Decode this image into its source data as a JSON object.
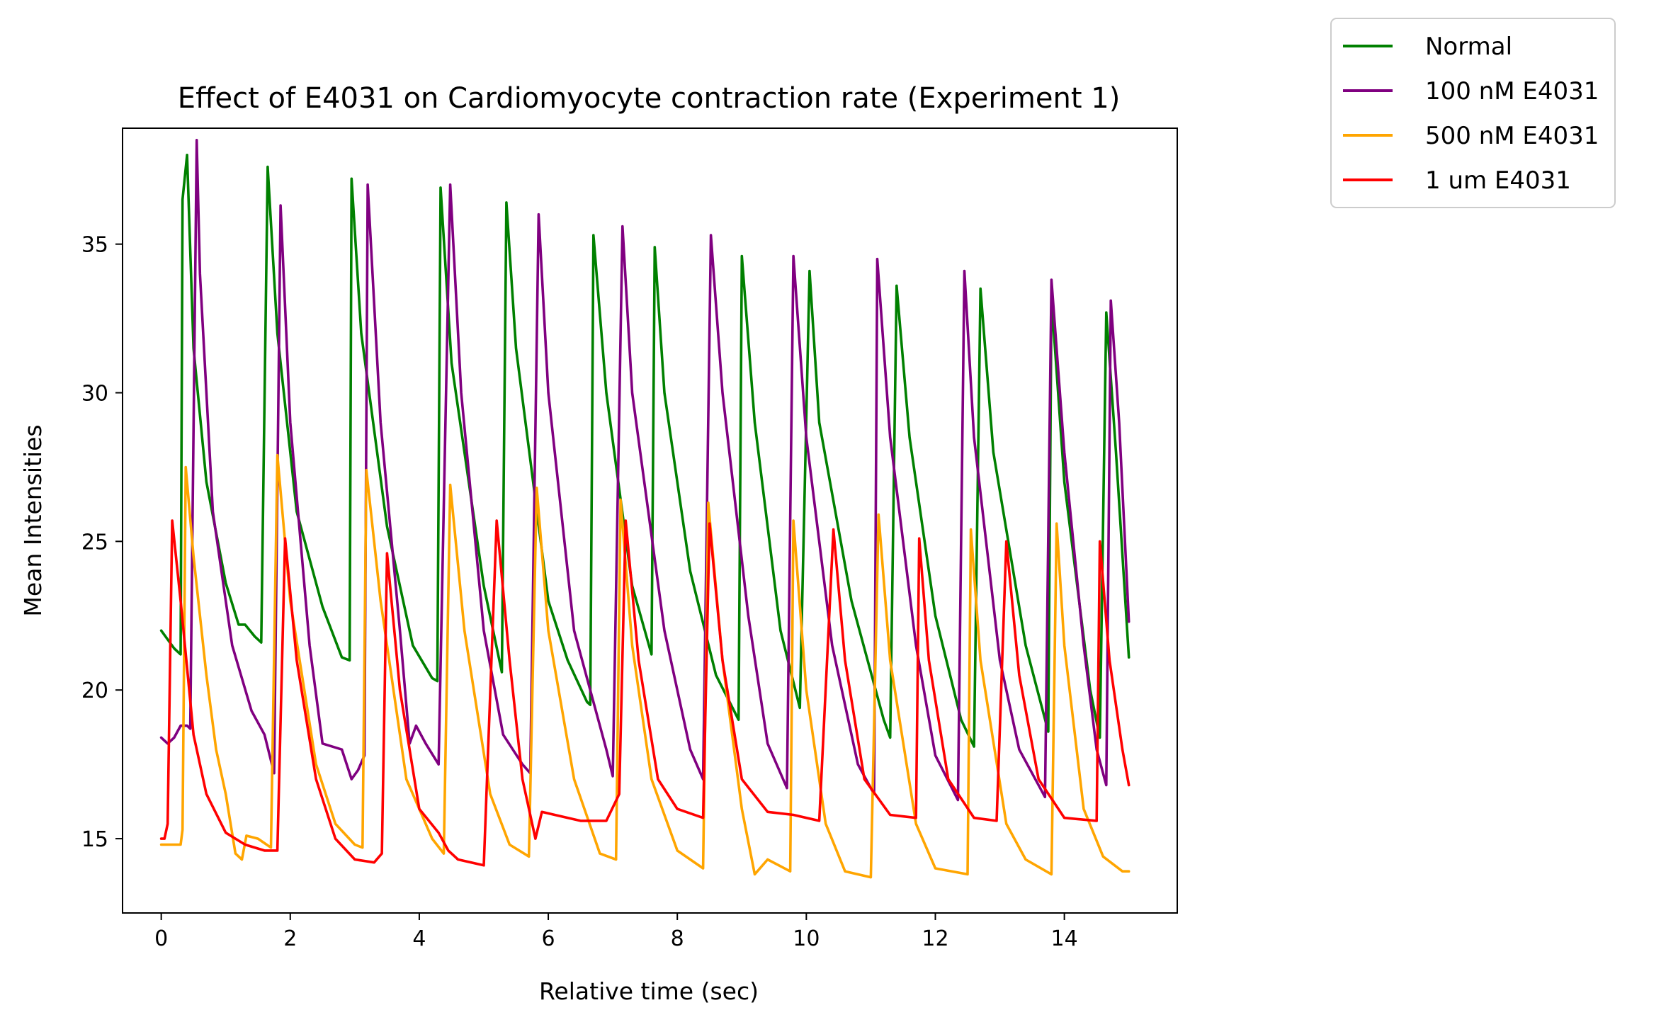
{
  "chart_data": {
    "type": "line",
    "title": "Effect of E4031 on Cardiomyocyte contraction rate (Experiment 1)",
    "xlabel": "Relative time (sec)",
    "ylabel": "Mean Intensities",
    "xlim": [
      -0.6,
      15.75
    ],
    "ylim": [
      12.5,
      38.9
    ],
    "x_ticks": [
      0,
      2,
      4,
      6,
      8,
      10,
      12,
      14
    ],
    "y_ticks": [
      15,
      20,
      25,
      30,
      35
    ],
    "x_tick_labels": [
      "0",
      "2",
      "4",
      "6",
      "8",
      "10",
      "12",
      "14"
    ],
    "y_tick_labels": [
      "15",
      "20",
      "25",
      "30",
      "35"
    ],
    "grid": false,
    "legend_position": "outside upper right",
    "legend": [
      "Normal",
      "100 nM E4031",
      "500 nM E4031",
      "1 um E4031"
    ],
    "series": [
      {
        "name": "Normal",
        "color": "#008000",
        "points": [
          [
            0,
            22
          ],
          [
            0.2,
            21.4
          ],
          [
            0.3,
            21.2
          ],
          [
            0.33,
            36.5
          ],
          [
            0.4,
            38
          ],
          [
            0.5,
            31.5
          ],
          [
            0.7,
            27
          ],
          [
            1.0,
            23.6
          ],
          [
            1.2,
            22.2
          ],
          [
            1.3,
            22.2
          ],
          [
            1.45,
            21.8
          ],
          [
            1.55,
            21.6
          ],
          [
            1.65,
            37.6
          ],
          [
            1.8,
            32
          ],
          [
            2.1,
            26
          ],
          [
            2.5,
            22.8
          ],
          [
            2.8,
            21.1
          ],
          [
            2.92,
            21
          ],
          [
            2.95,
            37.2
          ],
          [
            3.1,
            32
          ],
          [
            3.5,
            25.5
          ],
          [
            3.9,
            21.5
          ],
          [
            4.2,
            20.4
          ],
          [
            4.28,
            20.3
          ],
          [
            4.33,
            36.9
          ],
          [
            4.5,
            31
          ],
          [
            5.0,
            23.5
          ],
          [
            5.28,
            20.6
          ],
          [
            5.35,
            36.4
          ],
          [
            5.5,
            31.5
          ],
          [
            6.0,
            23
          ],
          [
            6.3,
            21
          ],
          [
            6.6,
            19.6
          ],
          [
            6.65,
            19.5
          ],
          [
            6.7,
            35.3
          ],
          [
            6.9,
            30
          ],
          [
            7.3,
            23.5
          ],
          [
            7.6,
            21.2
          ],
          [
            7.65,
            34.9
          ],
          [
            7.8,
            30
          ],
          [
            8.2,
            24
          ],
          [
            8.6,
            20.5
          ],
          [
            8.95,
            19
          ],
          [
            9.0,
            34.6
          ],
          [
            9.2,
            29
          ],
          [
            9.6,
            22
          ],
          [
            9.9,
            19.4
          ],
          [
            10.05,
            34.1
          ],
          [
            10.2,
            29
          ],
          [
            10.7,
            23
          ],
          [
            11.2,
            19
          ],
          [
            11.3,
            18.4
          ],
          [
            11.4,
            33.6
          ],
          [
            11.6,
            28.5
          ],
          [
            12.0,
            22.5
          ],
          [
            12.4,
            19
          ],
          [
            12.6,
            18.1
          ],
          [
            12.7,
            33.5
          ],
          [
            12.9,
            28
          ],
          [
            13.4,
            21.5
          ],
          [
            13.75,
            18.6
          ],
          [
            13.8,
            33.2
          ],
          [
            14.0,
            27
          ],
          [
            14.4,
            20
          ],
          [
            14.55,
            18.4
          ],
          [
            14.65,
            32.7
          ],
          [
            14.8,
            28
          ],
          [
            15.0,
            21.1
          ]
        ]
      },
      {
        "name": "100 nM E4031",
        "color": "#800080",
        "points": [
          [
            0,
            18.4
          ],
          [
            0.1,
            18.2
          ],
          [
            0.2,
            18.4
          ],
          [
            0.3,
            18.8
          ],
          [
            0.4,
            18.8
          ],
          [
            0.45,
            18.7
          ],
          [
            0.55,
            38.5
          ],
          [
            0.6,
            34
          ],
          [
            0.8,
            26
          ],
          [
            1.1,
            21.5
          ],
          [
            1.4,
            19.3
          ],
          [
            1.6,
            18.5
          ],
          [
            1.75,
            17.2
          ],
          [
            1.85,
            36.3
          ],
          [
            2.0,
            29
          ],
          [
            2.3,
            21.5
          ],
          [
            2.5,
            18.2
          ],
          [
            2.8,
            18
          ],
          [
            2.95,
            17
          ],
          [
            3.05,
            17.3
          ],
          [
            3.15,
            17.8
          ],
          [
            3.2,
            37
          ],
          [
            3.4,
            29
          ],
          [
            3.7,
            22
          ],
          [
            3.85,
            18.2
          ],
          [
            3.95,
            18.8
          ],
          [
            4.1,
            18.2
          ],
          [
            4.3,
            17.5
          ],
          [
            4.48,
            37
          ],
          [
            4.65,
            30
          ],
          [
            5.0,
            22
          ],
          [
            5.3,
            18.5
          ],
          [
            5.6,
            17.5
          ],
          [
            5.72,
            17.2
          ],
          [
            5.85,
            36
          ],
          [
            6.0,
            30
          ],
          [
            6.4,
            22
          ],
          [
            6.9,
            18
          ],
          [
            7.0,
            17.1
          ],
          [
            7.15,
            35.6
          ],
          [
            7.3,
            30
          ],
          [
            7.8,
            22
          ],
          [
            8.2,
            18
          ],
          [
            8.4,
            17
          ],
          [
            8.52,
            35.3
          ],
          [
            8.7,
            30
          ],
          [
            9.1,
            22.5
          ],
          [
            9.4,
            18.2
          ],
          [
            9.7,
            16.7
          ],
          [
            9.8,
            34.6
          ],
          [
            10.0,
            28.5
          ],
          [
            10.4,
            21.5
          ],
          [
            10.8,
            17.5
          ],
          [
            11.05,
            16.5
          ],
          [
            11.1,
            34.5
          ],
          [
            11.3,
            28.5
          ],
          [
            11.7,
            21.5
          ],
          [
            12.0,
            17.8
          ],
          [
            12.35,
            16.3
          ],
          [
            12.45,
            34.1
          ],
          [
            12.6,
            28.5
          ],
          [
            13.0,
            21
          ],
          [
            13.3,
            18
          ],
          [
            13.7,
            16.4
          ],
          [
            13.8,
            33.8
          ],
          [
            14.0,
            28
          ],
          [
            14.3,
            21.5
          ],
          [
            14.5,
            18
          ],
          [
            14.65,
            16.8
          ],
          [
            14.72,
            33.1
          ],
          [
            14.85,
            29
          ],
          [
            15.0,
            22.3
          ]
        ]
      },
      {
        "name": "500 nM E4031",
        "color": "#FFA500",
        "points": [
          [
            0,
            14.8
          ],
          [
            0.2,
            14.8
          ],
          [
            0.3,
            14.8
          ],
          [
            0.33,
            15.3
          ],
          [
            0.38,
            27.5
          ],
          [
            0.5,
            24.5
          ],
          [
            0.7,
            20.5
          ],
          [
            0.85,
            18
          ],
          [
            1.0,
            16.5
          ],
          [
            1.15,
            14.5
          ],
          [
            1.25,
            14.3
          ],
          [
            1.32,
            15.1
          ],
          [
            1.5,
            15
          ],
          [
            1.7,
            14.7
          ],
          [
            1.8,
            27.9
          ],
          [
            2.0,
            23
          ],
          [
            2.4,
            17.5
          ],
          [
            2.7,
            15.5
          ],
          [
            3.0,
            14.8
          ],
          [
            3.12,
            14.7
          ],
          [
            3.18,
            27.4
          ],
          [
            3.4,
            23
          ],
          [
            3.8,
            17
          ],
          [
            4.2,
            15
          ],
          [
            4.38,
            14.5
          ],
          [
            4.48,
            26.9
          ],
          [
            4.7,
            22
          ],
          [
            5.1,
            16.5
          ],
          [
            5.4,
            14.8
          ],
          [
            5.7,
            14.4
          ],
          [
            5.82,
            26.8
          ],
          [
            6.0,
            22
          ],
          [
            6.4,
            17
          ],
          [
            6.8,
            14.5
          ],
          [
            7.05,
            14.3
          ],
          [
            7.12,
            26.4
          ],
          [
            7.3,
            21.5
          ],
          [
            7.6,
            17
          ],
          [
            8.0,
            14.6
          ],
          [
            8.4,
            14
          ],
          [
            8.48,
            26.3
          ],
          [
            8.7,
            21
          ],
          [
            9.0,
            16
          ],
          [
            9.2,
            13.8
          ],
          [
            9.4,
            14.3
          ],
          [
            9.75,
            13.9
          ],
          [
            9.8,
            25.7
          ],
          [
            10.0,
            20
          ],
          [
            10.3,
            15.5
          ],
          [
            10.6,
            13.9
          ],
          [
            11.0,
            13.7
          ],
          [
            11.12,
            25.9
          ],
          [
            11.3,
            21
          ],
          [
            11.7,
            15.5
          ],
          [
            12.0,
            14
          ],
          [
            12.5,
            13.8
          ],
          [
            12.55,
            25.4
          ],
          [
            12.7,
            21
          ],
          [
            13.1,
            15.5
          ],
          [
            13.4,
            14.3
          ],
          [
            13.8,
            13.8
          ],
          [
            13.88,
            25.6
          ],
          [
            14.0,
            21.5
          ],
          [
            14.3,
            16
          ],
          [
            14.6,
            14.4
          ],
          [
            14.9,
            13.9
          ],
          [
            15.0,
            13.9
          ]
        ]
      },
      {
        "name": "1 um E4031",
        "color": "#FF0000",
        "points": [
          [
            0,
            15
          ],
          [
            0.05,
            15
          ],
          [
            0.1,
            15.5
          ],
          [
            0.17,
            25.7
          ],
          [
            0.3,
            23
          ],
          [
            0.5,
            18.5
          ],
          [
            0.7,
            16.5
          ],
          [
            1.0,
            15.2
          ],
          [
            1.3,
            14.8
          ],
          [
            1.6,
            14.6
          ],
          [
            1.8,
            14.6
          ],
          [
            1.92,
            25.1
          ],
          [
            2.1,
            21
          ],
          [
            2.4,
            17
          ],
          [
            2.7,
            15
          ],
          [
            3.0,
            14.3
          ],
          [
            3.3,
            14.2
          ],
          [
            3.42,
            14.5
          ],
          [
            3.5,
            24.6
          ],
          [
            3.7,
            20
          ],
          [
            4.0,
            16
          ],
          [
            4.3,
            15.2
          ],
          [
            4.45,
            14.6
          ],
          [
            4.6,
            14.3
          ],
          [
            5.0,
            14.1
          ],
          [
            5.2,
            25.7
          ],
          [
            5.4,
            21
          ],
          [
            5.6,
            17
          ],
          [
            5.8,
            15
          ],
          [
            5.9,
            15.9
          ],
          [
            6.1,
            15.8
          ],
          [
            6.5,
            15.6
          ],
          [
            6.9,
            15.6
          ],
          [
            7.1,
            16.5
          ],
          [
            7.2,
            25.7
          ],
          [
            7.4,
            21
          ],
          [
            7.7,
            17
          ],
          [
            8.0,
            16
          ],
          [
            8.4,
            15.7
          ],
          [
            8.5,
            25.6
          ],
          [
            8.7,
            21
          ],
          [
            9.0,
            17
          ],
          [
            9.4,
            15.9
          ],
          [
            9.8,
            15.8
          ],
          [
            10.2,
            15.6
          ],
          [
            10.42,
            25.4
          ],
          [
            10.6,
            21
          ],
          [
            10.9,
            17
          ],
          [
            11.3,
            15.8
          ],
          [
            11.7,
            15.7
          ],
          [
            11.75,
            25.1
          ],
          [
            11.9,
            21
          ],
          [
            12.2,
            17
          ],
          [
            12.6,
            15.7
          ],
          [
            12.95,
            15.6
          ],
          [
            13.1,
            25
          ],
          [
            13.3,
            20.5
          ],
          [
            13.6,
            17
          ],
          [
            14.0,
            15.7
          ],
          [
            14.5,
            15.6
          ],
          [
            14.55,
            25
          ],
          [
            14.7,
            21
          ],
          [
            14.9,
            18
          ],
          [
            15.0,
            16.8
          ]
        ]
      }
    ]
  }
}
